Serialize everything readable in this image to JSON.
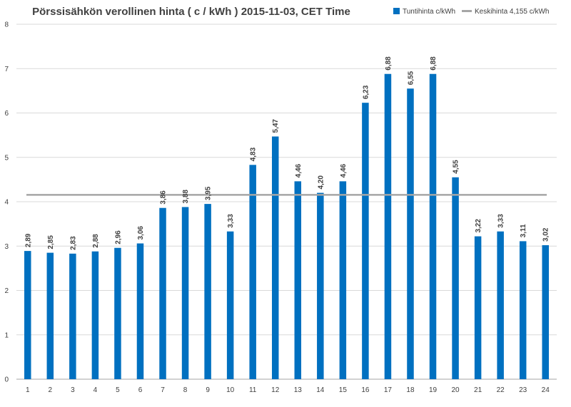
{
  "chart_data": {
    "type": "bar",
    "title": "Pörssisähkön verollinen hinta ( c / kWh ) 2015-11-03, CET Time",
    "categories": [
      "1",
      "2",
      "3",
      "4",
      "5",
      "6",
      "7",
      "8",
      "9",
      "10",
      "11",
      "12",
      "13",
      "14",
      "15",
      "16",
      "17",
      "18",
      "19",
      "20",
      "21",
      "22",
      "23",
      "24"
    ],
    "series": [
      {
        "name": "Tuntihinta c/kWh",
        "type": "bar",
        "color": "#0070c0",
        "values": [
          2.89,
          2.85,
          2.83,
          2.88,
          2.96,
          3.06,
          3.86,
          3.88,
          3.95,
          3.33,
          4.83,
          5.47,
          4.46,
          4.2,
          4.46,
          6.23,
          6.88,
          6.55,
          6.88,
          4.55,
          3.22,
          3.33,
          3.11,
          3.02
        ],
        "data_labels": [
          "2,89",
          "2,85",
          "2,83",
          "2,88",
          "2,96",
          "3,06",
          "3,86",
          "3,88",
          "3,95",
          "3,33",
          "4,83",
          "5,47",
          "4,46",
          "4,20",
          "4,46",
          "6,23",
          "6,88",
          "6,55",
          "6,88",
          "4,55",
          "3,22",
          "3,33",
          "3,11",
          "3,02"
        ]
      },
      {
        "name": "Keskihinta 4,155 c/kWh",
        "type": "line",
        "color": "#a6a6a6",
        "value": 4.155
      }
    ],
    "ylim": [
      0,
      8
    ],
    "yticks": [
      "0",
      "1",
      "2",
      "3",
      "4",
      "5",
      "6",
      "7",
      "8"
    ],
    "grid": true,
    "legend_position": "top-right"
  }
}
